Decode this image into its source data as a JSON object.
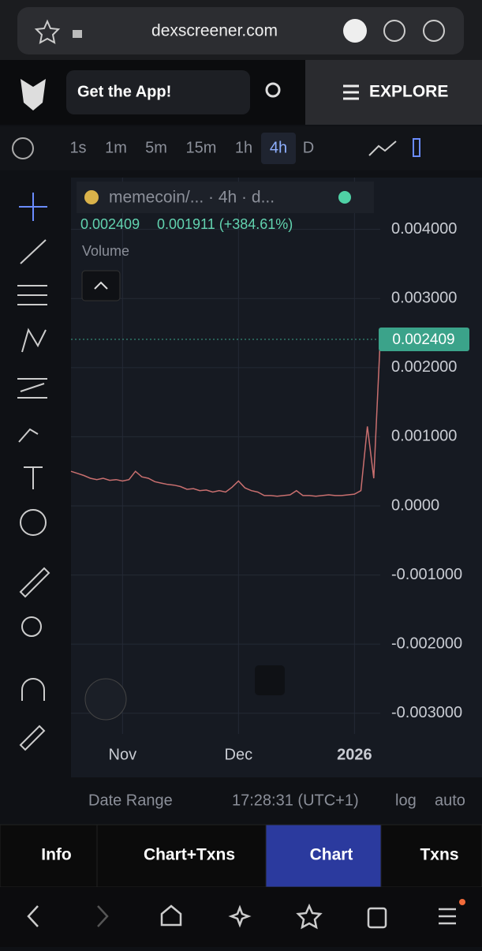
{
  "browser": {
    "url": "dexscreener.com"
  },
  "header": {
    "app_button": "Get the App!",
    "explore": "EXPLORE"
  },
  "toolbar": {
    "intervals": [
      {
        "label": "1s",
        "active": false
      },
      {
        "label": "1m",
        "active": false
      },
      {
        "label": "5m",
        "active": false
      },
      {
        "label": "15m",
        "active": false
      },
      {
        "label": "1h",
        "active": false
      },
      {
        "label": "4h",
        "active": true
      },
      {
        "label": "D",
        "active": false
      }
    ]
  },
  "legend": {
    "pair": "memecoin/... · 4h · d...",
    "price": "0.002409",
    "change": "0.001911 (+384.61%)",
    "volume": "Volume"
  },
  "price_tag": "0.002409",
  "chart_data": {
    "type": "line",
    "categories": [
      null,
      null,
      null,
      null,
      null,
      null,
      null,
      null,
      "Nov",
      null,
      null,
      null,
      null,
      null,
      null,
      null,
      null,
      null,
      null,
      null,
      null,
      null,
      null,
      null,
      null,
      null,
      "Dec",
      null,
      null,
      null,
      null,
      null,
      null,
      null,
      null,
      null,
      null,
      null,
      null,
      null,
      null,
      null,
      null,
      null,
      "2026",
      null,
      null,
      null,
      null
    ],
    "series": [
      {
        "name": "memecoin",
        "color": "#c96f6f",
        "values": [
          0.0005,
          0.00047,
          0.00044,
          0.0004,
          0.00038,
          0.0004,
          0.00037,
          0.00038,
          0.00036,
          0.00038,
          0.0005,
          0.00042,
          0.0004,
          0.00035,
          0.00033,
          0.00031,
          0.0003,
          0.00028,
          0.00024,
          0.00025,
          0.00022,
          0.00023,
          0.0002,
          0.00022,
          0.0002,
          0.00027,
          0.00036,
          0.00026,
          0.00022,
          0.0002,
          0.00015,
          0.00015,
          0.00014,
          0.00015,
          0.00016,
          0.00022,
          0.00015,
          0.00015,
          0.00014,
          0.00015,
          0.00016,
          0.00015,
          0.00015,
          0.00016,
          0.00017,
          0.00022,
          0.00115,
          0.0004,
          0.002409
        ]
      }
    ],
    "ylim": [
      -0.0033,
      0.00475
    ],
    "yticks": [
      {
        "value": 0.004,
        "label": "0.004000"
      },
      {
        "value": 0.003,
        "label": "0.003000"
      },
      {
        "value": 0.002,
        "label": "0.002000"
      },
      {
        "value": 0.001,
        "label": "0.001000"
      },
      {
        "value": 0,
        "label": "0.0000"
      },
      {
        "value": -0.001,
        "label": "-0.001000"
      },
      {
        "value": -0.002,
        "label": "-0.002000"
      },
      {
        "value": -0.003,
        "label": "-0.003000"
      }
    ],
    "grid": true
  },
  "footer": {
    "date_range": "Date Range",
    "time": "17:28:31 (UTC+1)",
    "log": "log",
    "auto": "auto"
  },
  "tabs": [
    {
      "label": "Info",
      "active": false
    },
    {
      "label": "Chart+Txns",
      "active": false
    },
    {
      "label": "Chart",
      "active": true
    },
    {
      "label": "Txns",
      "active": false
    }
  ]
}
